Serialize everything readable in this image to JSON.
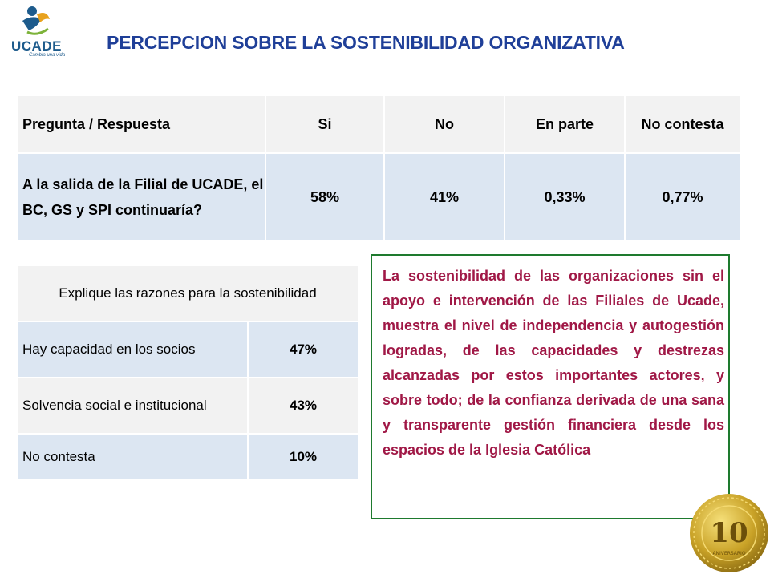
{
  "logo": {
    "name": "UCADE",
    "tagline": "Cambia una vida"
  },
  "title": "PERCEPCION SOBRE LA SOSTENIBILIDAD ORGANIZATIVA",
  "table1": {
    "headers": [
      "Pregunta / Respuesta",
      "Si",
      "No",
      "En parte",
      "No contesta"
    ],
    "row": {
      "question": "A la salida de la Filial de UCADE, el BC, GS y SPI continuaría?",
      "values": [
        "58%",
        "41%",
        "0,33%",
        "0,77%"
      ]
    }
  },
  "table2": {
    "header": "Explique las razones para la sostenibilidad",
    "rows": [
      {
        "label": "Hay capacidad en los socios",
        "value": "47%"
      },
      {
        "label": "Solvencia social e institucional",
        "value": "43%"
      },
      {
        "label": "No contesta",
        "value": "10%"
      }
    ]
  },
  "note": "La sostenibilidad de las organizaciones sin el apoyo e intervención de las Filiales de Ucade, muestra el nivel de independencia y autogestión logradas, de las capacidades y destrezas alcanzadas por estos importantes actores, y sobre todo; de la confianza derivada de una sana y transparente gestión financiera desde los espacios de la Iglesia Católica",
  "seal": {
    "number": "10",
    "text": "ANIVERSARIO"
  },
  "colors": {
    "title": "#1f3f98",
    "note_text": "#a01846",
    "note_border": "#1e7a2e",
    "cell_blue": "#dce6f2",
    "cell_gray": "#f2f2f2",
    "seal_gold": "#c9a227"
  }
}
